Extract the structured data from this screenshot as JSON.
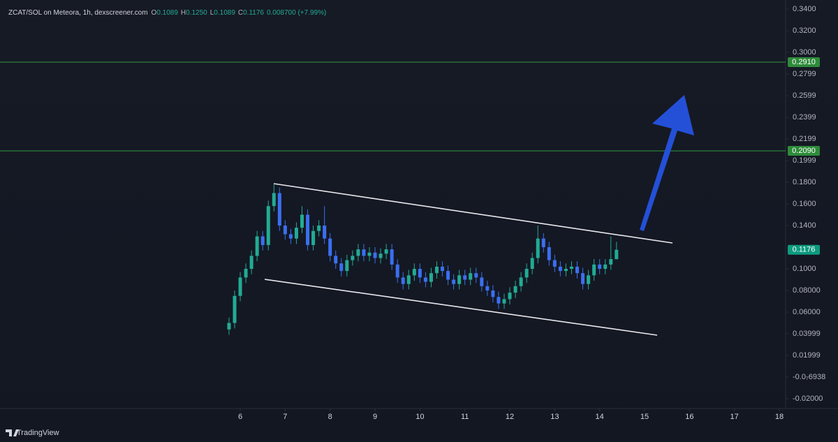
{
  "chart_data": {
    "type": "candlestick",
    "title": "ZCAT/SOL on Meteora, 1h, dexscreener.com",
    "ohlc": [
      {
        "label": "O",
        "value": "0.1089"
      },
      {
        "label": "H",
        "value": "0.1250"
      },
      {
        "label": "L",
        "value": "0.1089"
      },
      {
        "label": "C",
        "value": "0.1176"
      }
    ],
    "change": "0.008700 (+7.99%)",
    "up_color": "#22ab94",
    "down_color": "#3a6ff0",
    "x": [
      5.75,
      5.875,
      6,
      6.125,
      6.25,
      6.375,
      6.5,
      6.625,
      6.75,
      6.875,
      7,
      7.125,
      7.25,
      7.375,
      7.5,
      7.625,
      7.75,
      7.875,
      8,
      8.125,
      8.25,
      8.375,
      8.5,
      8.625,
      8.75,
      8.875,
      9,
      9.125,
      9.25,
      9.375,
      9.5,
      9.625,
      9.75,
      9.875,
      10,
      10.125,
      10.25,
      10.375,
      10.5,
      10.625,
      10.75,
      10.875,
      11,
      11.125,
      11.25,
      11.375,
      11.5,
      11.625,
      11.75,
      11.875,
      12,
      12.125,
      12.25,
      12.375,
      12.5,
      12.625,
      12.75,
      12.875,
      13,
      13.125,
      13.25,
      13.375,
      13.5,
      13.625,
      13.75,
      13.875,
      14,
      14.125,
      14.25,
      14.375
    ],
    "open": [
      0.044,
      0.05,
      0.075,
      0.092,
      0.1,
      0.112,
      0.13,
      0.122,
      0.158,
      0.17,
      0.14,
      0.132,
      0.128,
      0.138,
      0.15,
      0.122,
      0.135,
      0.14,
      0.128,
      0.112,
      0.105,
      0.098,
      0.108,
      0.112,
      0.118,
      0.112,
      0.115,
      0.11,
      0.114,
      0.118,
      0.104,
      0.092,
      0.086,
      0.094,
      0.1,
      0.092,
      0.088,
      0.096,
      0.102,
      0.098,
      0.09,
      0.086,
      0.094,
      0.09,
      0.096,
      0.092,
      0.084,
      0.08,
      0.074,
      0.068,
      0.072,
      0.078,
      0.084,
      0.092,
      0.1,
      0.11,
      0.128,
      0.12,
      0.108,
      0.102,
      0.098,
      0.1,
      0.102,
      0.096,
      0.086,
      0.094,
      0.104,
      0.1,
      0.104,
      0.1089
    ],
    "high": [
      0.055,
      0.08,
      0.097,
      0.105,
      0.117,
      0.135,
      0.135,
      0.163,
      0.178,
      0.175,
      0.145,
      0.137,
      0.143,
      0.158,
      0.155,
      0.14,
      0.145,
      0.158,
      0.133,
      0.117,
      0.11,
      0.113,
      0.117,
      0.123,
      0.123,
      0.12,
      0.12,
      0.119,
      0.123,
      0.123,
      0.109,
      0.097,
      0.099,
      0.105,
      0.105,
      0.097,
      0.101,
      0.107,
      0.107,
      0.103,
      0.095,
      0.099,
      0.099,
      0.101,
      0.101,
      0.097,
      0.089,
      0.085,
      0.079,
      0.077,
      0.083,
      0.089,
      0.097,
      0.105,
      0.115,
      0.14,
      0.133,
      0.125,
      0.113,
      0.107,
      0.105,
      0.107,
      0.107,
      0.101,
      0.099,
      0.109,
      0.109,
      0.109,
      0.13,
      0.125
    ],
    "low": [
      0.039,
      0.045,
      0.07,
      0.087,
      0.095,
      0.107,
      0.117,
      0.117,
      0.153,
      0.135,
      0.127,
      0.123,
      0.123,
      0.133,
      0.117,
      0.117,
      0.13,
      0.123,
      0.107,
      0.1,
      0.093,
      0.093,
      0.103,
      0.107,
      0.107,
      0.107,
      0.105,
      0.105,
      0.109,
      0.099,
      0.087,
      0.081,
      0.081,
      0.089,
      0.087,
      0.083,
      0.083,
      0.091,
      0.093,
      0.085,
      0.081,
      0.081,
      0.085,
      0.085,
      0.087,
      0.079,
      0.075,
      0.069,
      0.063,
      0.063,
      0.067,
      0.073,
      0.079,
      0.087,
      0.095,
      0.105,
      0.115,
      0.103,
      0.097,
      0.093,
      0.093,
      0.095,
      0.091,
      0.081,
      0.081,
      0.089,
      0.095,
      0.095,
      0.099,
      0.1089
    ],
    "close": [
      0.05,
      0.075,
      0.092,
      0.1,
      0.112,
      0.13,
      0.122,
      0.158,
      0.17,
      0.14,
      0.132,
      0.128,
      0.138,
      0.15,
      0.122,
      0.135,
      0.14,
      0.128,
      0.112,
      0.105,
      0.098,
      0.108,
      0.112,
      0.118,
      0.112,
      0.115,
      0.11,
      0.114,
      0.118,
      0.104,
      0.092,
      0.086,
      0.094,
      0.1,
      0.092,
      0.088,
      0.096,
      0.102,
      0.098,
      0.09,
      0.086,
      0.094,
      0.09,
      0.096,
      0.092,
      0.084,
      0.08,
      0.074,
      0.068,
      0.072,
      0.078,
      0.084,
      0.092,
      0.1,
      0.11,
      0.128,
      0.12,
      0.108,
      0.102,
      0.098,
      0.1,
      0.102,
      0.096,
      0.086,
      0.094,
      0.104,
      0.1,
      0.104,
      0.109,
      0.1176
    ],
    "xlim": [
      0.652,
      18.14
    ],
    "xticks": [
      6,
      7,
      8,
      9,
      10,
      11,
      12,
      13,
      14,
      15,
      16,
      17,
      18
    ],
    "ylim": [
      -0.02903,
      0.34839
    ],
    "yticks": [
      {
        "value": 0.34,
        "label": "0.3400"
      },
      {
        "value": 0.32,
        "label": "0.3200"
      },
      {
        "value": 0.3,
        "label": "0.3000"
      },
      {
        "value": 0.2799,
        "label": "0.2799"
      },
      {
        "value": 0.2599,
        "label": "0.2599"
      },
      {
        "value": 0.2399,
        "label": "0.2399"
      },
      {
        "value": 0.2199,
        "label": "0.2199"
      },
      {
        "value": 0.1999,
        "label": "0.1999"
      },
      {
        "value": 0.18,
        "label": "0.1800"
      },
      {
        "value": 0.16,
        "label": "0.1600"
      },
      {
        "value": 0.14,
        "label": "0.1400"
      },
      {
        "value": 0.1,
        "label": "0.1000"
      },
      {
        "value": 0.08,
        "label": "0.08000"
      },
      {
        "value": 0.06,
        "label": "0.06000"
      },
      {
        "value": 0.03999,
        "label": "0.03999"
      },
      {
        "value": 0.01999,
        "label": "0.01999"
      },
      {
        "value": -6.938e-08,
        "label": "-0.0₇6938"
      },
      {
        "value": -0.02,
        "label": "-0.02000"
      }
    ],
    "price_lines": [
      {
        "value": 0.291,
        "label": "0.2910",
        "color": "#2e8b3a"
      },
      {
        "value": 0.209,
        "label": "0.2090",
        "color": "#2e8b3a"
      }
    ],
    "last_price": {
      "value": 0.1176,
      "label": "0.1176",
      "color": "#0d9b7f"
    }
  },
  "branding": "TradingView"
}
